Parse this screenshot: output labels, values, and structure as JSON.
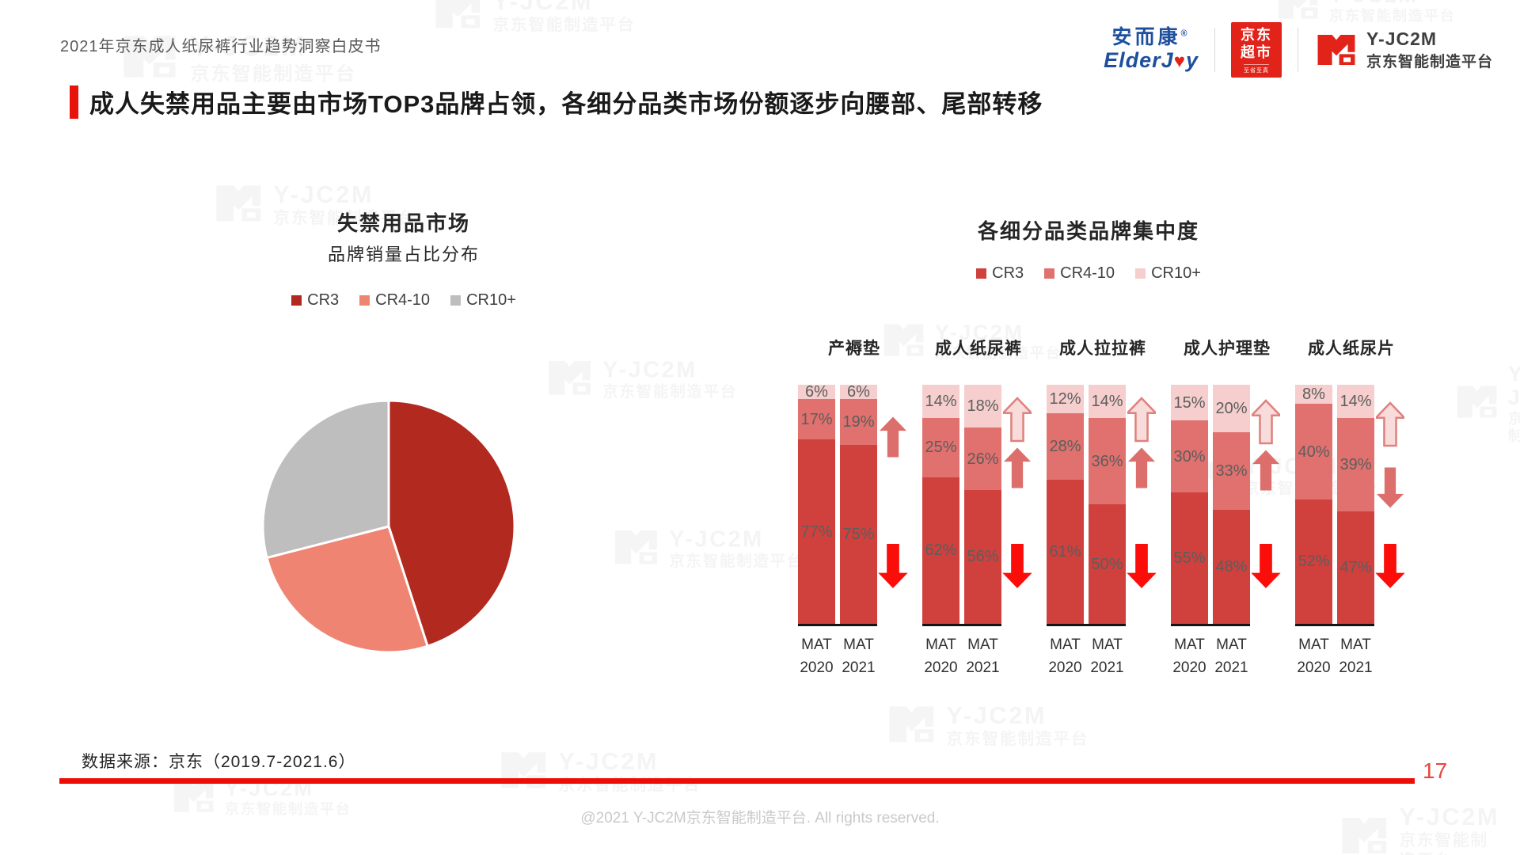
{
  "header": {
    "doc_title": "2021年京东成人纸尿裤行业趋势洞察白皮书",
    "brand_elderjoy": {
      "cn": "安而康",
      "reg": "®",
      "en_prefix": "ElderJ",
      "heart": "♥",
      "en_suffix": "y"
    },
    "brand_jd_market": {
      "line1": "京东",
      "line2": "超市",
      "tagline": "至省至真"
    },
    "brand_yjc2m": {
      "name": "Y-JC2M",
      "subtitle": "京东智能制造平台"
    }
  },
  "page_title": "成人失禁用品主要由市场TOP3品牌占领，各细分品类市场份额逐步向腰部、尾部转移",
  "watermark": {
    "line1": "Y-JC2M",
    "line2": "京东智能制造平台"
  },
  "footer": {
    "source": "数据来源：京东（2019.7-2021.6）",
    "page_number": "17",
    "copyright": "@2021 Y-JC2M京东智能制造平台. All rights reserved."
  },
  "accent_colors": {
    "jd_red": "#e2231a",
    "accent_red": "#e8130b",
    "footer_line_red": "#ee0d05",
    "page_number_red": "#e8453e"
  },
  "chart_data": [
    {
      "type": "pie",
      "title": "失禁用品市场",
      "subtitle": "品牌销量占比分布",
      "legend": [
        "CR3",
        "CR4-10",
        "CR10+"
      ],
      "slices": [
        {
          "label": "CR3",
          "value": 45,
          "color": "#b2291f"
        },
        {
          "label": "CR4-10",
          "value": 26,
          "color": "#f08473"
        },
        {
          "label": "CR10+",
          "value": 29,
          "color": "#bfbebe"
        }
      ],
      "start_at": "12-oclock",
      "direction": "clockwise"
    },
    {
      "type": "stacked-bar",
      "title": "各细分品类品牌集中度",
      "legend": [
        {
          "label": "CR3",
          "color": "#d0403c"
        },
        {
          "label": "CR4-10",
          "color": "#e0716e"
        },
        {
          "label": "CR10+",
          "color": "#f5cecd"
        }
      ],
      "stack_order": [
        "CR3",
        "CR4-10",
        "CR10+"
      ],
      "unit": "%",
      "ylim": [
        0,
        100
      ],
      "categories": [
        "产褥垫",
        "成人纸尿裤",
        "成人拉拉裤",
        "成人护理垫",
        "成人纸尿片"
      ],
      "arrow_styles": {
        "light": {
          "fill": "#f8dcdb",
          "stroke": "#de827d"
        },
        "medium": {
          "fill": "#dc6e6b",
          "stroke": "none"
        },
        "strong": {
          "fill": "#fb0d0a",
          "stroke": "none"
        }
      },
      "groups": [
        {
          "category": "产褥垫",
          "bars": [
            {
              "x_label": [
                "MAT",
                "2020"
              ],
              "values": [
                77,
                17,
                6
              ]
            },
            {
              "x_label": [
                "MAT",
                "2021"
              ],
              "values": [
                75,
                19,
                6
              ]
            }
          ],
          "arrows": [
            {
              "direction": "up",
              "style": "medium",
              "top_pct": 13
            },
            {
              "direction": "down",
              "style": "strong",
              "top_pct": 66
            }
          ]
        },
        {
          "category": "成人纸尿裤",
          "bars": [
            {
              "x_label": [
                "MAT",
                "2020"
              ],
              "values": [
                62,
                25,
                14
              ]
            },
            {
              "x_label": [
                "MAT",
                "2021"
              ],
              "values": [
                56,
                26,
                18
              ]
            }
          ],
          "arrows": [
            {
              "direction": "up",
              "style": "light",
              "top_pct": 5
            },
            {
              "direction": "up",
              "style": "medium",
              "top_pct": 26
            },
            {
              "direction": "down",
              "style": "strong",
              "top_pct": 66
            }
          ]
        },
        {
          "category": "成人拉拉裤",
          "bars": [
            {
              "x_label": [
                "MAT",
                "2020"
              ],
              "values": [
                61,
                28,
                12
              ]
            },
            {
              "x_label": [
                "MAT",
                "2021"
              ],
              "values": [
                50,
                36,
                14
              ]
            }
          ],
          "arrows": [
            {
              "direction": "up",
              "style": "light",
              "top_pct": 5
            },
            {
              "direction": "up",
              "style": "medium",
              "top_pct": 26
            },
            {
              "direction": "down",
              "style": "strong",
              "top_pct": 66
            }
          ]
        },
        {
          "category": "成人护理垫",
          "bars": [
            {
              "x_label": [
                "MAT",
                "2020"
              ],
              "values": [
                55,
                30,
                15
              ]
            },
            {
              "x_label": [
                "MAT",
                "2021"
              ],
              "values": [
                48,
                33,
                20
              ]
            }
          ],
          "arrows": [
            {
              "direction": "up",
              "style": "light",
              "top_pct": 6
            },
            {
              "direction": "up",
              "style": "medium",
              "top_pct": 27
            },
            {
              "direction": "down",
              "style": "strong",
              "top_pct": 66
            }
          ]
        },
        {
          "category": "成人纸尿片",
          "bars": [
            {
              "x_label": [
                "MAT",
                "2020"
              ],
              "values": [
                52,
                40,
                8
              ]
            },
            {
              "x_label": [
                "MAT",
                "2021"
              ],
              "values": [
                47,
                39,
                14
              ]
            }
          ],
          "arrows": [
            {
              "direction": "up",
              "style": "light",
              "top_pct": 7
            },
            {
              "direction": "down",
              "style": "medium",
              "top_pct": 34
            },
            {
              "direction": "down",
              "style": "strong",
              "top_pct": 66
            }
          ]
        }
      ]
    }
  ]
}
